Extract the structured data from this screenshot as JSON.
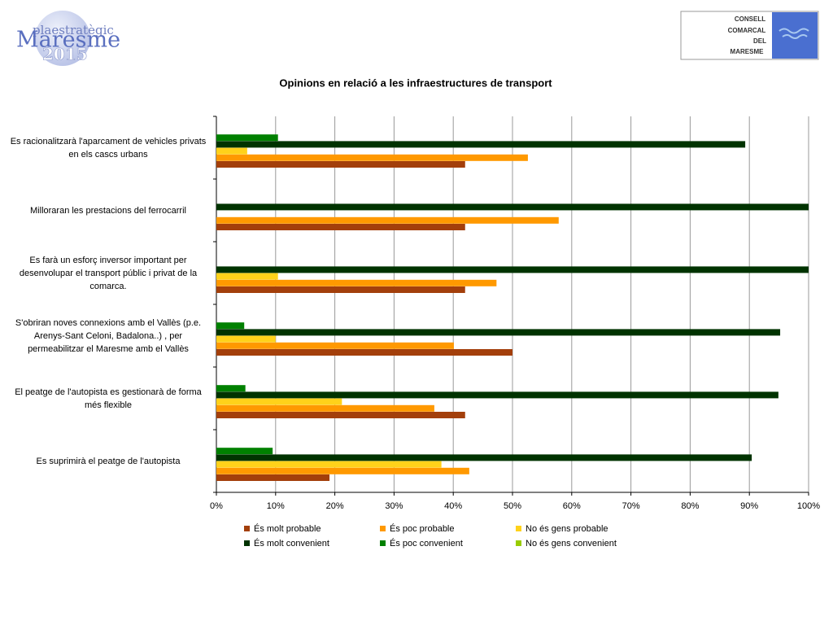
{
  "header": {
    "logo_top": "plaestratègic",
    "logo_main": "Maresme",
    "logo_year": "2015",
    "council": [
      "CONSELL",
      "COMARCAL",
      "DEL",
      "MARESME"
    ]
  },
  "chart_data": {
    "type": "hbar",
    "title": "Opinions en relació a les infraestructures de transport",
    "categories": [
      "Es racionalitzarà l'aparcament de vehicles privats en els cascs urbans",
      "Milloraran les prestacions del ferrocarril",
      "Es farà un esforç inversor important per desenvolupar el transport públic i privat de la comarca.",
      "S'obriran noves connexions amb el Vallès (p.e. Arenys-Sant Celoni, Badalona..) , per permeabilitzar el Maresme amb el Vallès",
      "El peatge de l'autopista es gestionarà de forma més flexible",
      "Es suprimirà el peatge de l'autopista"
    ],
    "series": [
      {
        "name": "És molt probable",
        "color": "#a33f0b",
        "values": [
          42,
          42,
          42,
          50,
          42,
          19.1
        ]
      },
      {
        "name": "És poc probable",
        "color": "#ff9900",
        "values": [
          52.6,
          57.8,
          47.3,
          40.1,
          36.8,
          42.7
        ]
      },
      {
        "name": "No és gens probable",
        "color": "#ffd21a",
        "values": [
          5.2,
          0,
          10.4,
          10,
          21.2,
          38
        ]
      },
      {
        "name": "És molt convenient",
        "color": "#003300",
        "values": [
          89.3,
          100,
          100,
          95.2,
          94.9,
          90.4
        ]
      },
      {
        "name": "És poc convenient",
        "color": "#008000",
        "values": [
          10.4,
          0,
          0,
          4.7,
          4.9,
          9.5
        ]
      },
      {
        "name": "No és gens convenient",
        "color": "#99cc00",
        "values": [
          0,
          0,
          0,
          0,
          0,
          0
        ]
      }
    ],
    "xlim": [
      0,
      100
    ],
    "xticks": [
      {
        "value": 0,
        "label": "0%"
      },
      {
        "value": 10,
        "label": "10%"
      },
      {
        "value": 20,
        "label": "20%"
      },
      {
        "value": 30,
        "label": "30%"
      },
      {
        "value": 40,
        "label": "40%"
      },
      {
        "value": 50,
        "label": "50%"
      },
      {
        "value": 60,
        "label": "60%"
      },
      {
        "value": 70,
        "label": "70%"
      },
      {
        "value": 80,
        "label": "80%"
      },
      {
        "value": 90,
        "label": "90%"
      },
      {
        "value": 100,
        "label": "100%"
      }
    ],
    "grid": true
  }
}
